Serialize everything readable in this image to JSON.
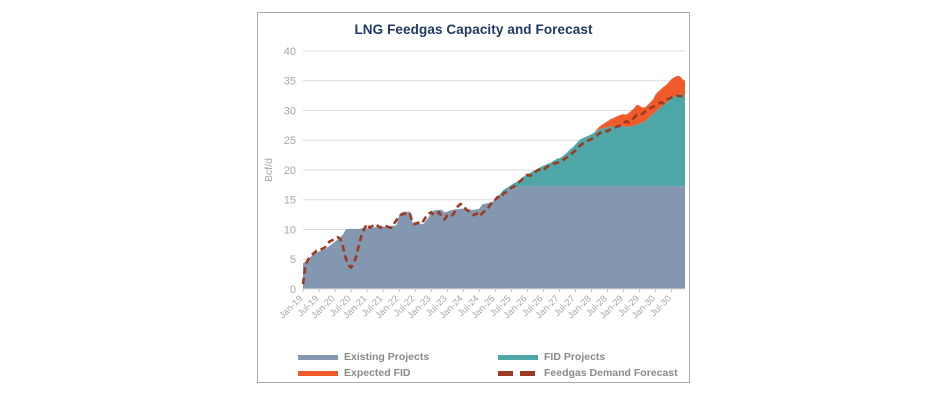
{
  "card": {
    "border_color": "#a9a9a9",
    "background": "#ffffff"
  },
  "title": {
    "text": "LNG Feedgas Capacity and Forecast",
    "color": "#1f3864"
  },
  "y_axis": {
    "label": "Bcf/d",
    "ticks": [
      0,
      5,
      10,
      15,
      20,
      25,
      30,
      35,
      40
    ],
    "min": 0,
    "max": 40,
    "text_color": "#a6a6a6",
    "gridline_color": "#dcdcdc"
  },
  "x_axis": {
    "tick_labels": [
      "Jan-19",
      "Jul-19",
      "Jan-20",
      "Jul-20",
      "Jan-21",
      "Jul-21",
      "Jan-22",
      "Jul-22",
      "Jan-23",
      "Jul-23",
      "Jan-24",
      "Jul-24",
      "Jan-25",
      "Jul-25",
      "Jan-26",
      "Jul-26",
      "Jan-27",
      "Jul-27",
      "Jan-28",
      "Jul-28",
      "Jan-29",
      "Jul-29",
      "Jan-30",
      "Jul-30"
    ],
    "text_color": "#a6a6a6",
    "tick_color": "#bfbfbf"
  },
  "legend": {
    "text_color": "#8a8a8a",
    "items": [
      {
        "label": "Existing Projects",
        "color": "#8497b0",
        "style": "solid"
      },
      {
        "label": "FID Projects",
        "color": "#4ea7a6",
        "style": "solid"
      },
      {
        "label": "Expected FID",
        "color": "#f15b2b",
        "style": "solid"
      },
      {
        "label": "Feedgas Demand Forecast",
        "color": "#9c3a22",
        "style": "dashed"
      }
    ]
  },
  "chart_data": {
    "type": "area",
    "stacked": true,
    "title": "LNG Feedgas Capacity and Forecast",
    "ylabel": "Bcf/d",
    "ylim": [
      0,
      40
    ],
    "grid": true,
    "legend_position": "bottom",
    "frequency": "monthly",
    "x_start": "Jan-19",
    "x_end": "Dec-30",
    "x_tick_labels": [
      "Jan-19",
      "Jul-19",
      "Jan-20",
      "Jul-20",
      "Jan-21",
      "Jul-21",
      "Jan-22",
      "Jul-22",
      "Jan-23",
      "Jul-23",
      "Jan-24",
      "Jul-24",
      "Jan-25",
      "Jul-25",
      "Jan-26",
      "Jul-26",
      "Jan-27",
      "Jul-27",
      "Jan-28",
      "Jul-28",
      "Jan-29",
      "Jul-29",
      "Jan-30",
      "Jul-30"
    ],
    "units": "Bcf/d",
    "series": [
      {
        "name": "Existing Projects",
        "type": "area",
        "color": "#8497b0",
        "values": [
          4.3,
          4.6,
          4.9,
          5.5,
          5.8,
          6.2,
          6.3,
          6.5,
          6.6,
          6.9,
          7.3,
          7.6,
          8.0,
          8.3,
          8.7,
          9.2,
          10.0,
          10.1,
          10.1,
          10.1,
          10.1,
          10.1,
          10.2,
          10.2,
          10.2,
          10.3,
          10.3,
          10.4,
          10.4,
          10.5,
          10.5,
          10.5,
          10.5,
          10.6,
          10.6,
          10.7,
          12.5,
          12.9,
          13.0,
          13.0,
          13.0,
          11.2,
          11.0,
          11.0,
          11.0,
          10.9,
          11.5,
          12.0,
          12.8,
          13.2,
          13.3,
          13.3,
          13.3,
          12.9,
          13.0,
          13.2,
          13.3,
          13.4,
          13.4,
          13.5,
          13.5,
          13.5,
          13.4,
          13.3,
          13.3,
          13.4,
          13.5,
          14.2,
          14.3,
          14.4,
          14.5,
          14.7,
          15.0,
          15.4,
          15.8,
          16.2,
          16.5,
          16.7,
          16.9,
          17.0,
          17.1,
          17.2,
          17.3,
          17.3,
          17.3,
          17.3,
          17.3,
          17.3,
          17.3,
          17.3,
          17.3,
          17.3,
          17.3,
          17.3,
          17.3,
          17.3,
          17.3,
          17.3,
          17.3,
          17.3,
          17.3,
          17.3,
          17.3,
          17.3,
          17.3,
          17.3,
          17.3,
          17.3,
          17.3,
          17.3,
          17.3,
          17.3,
          17.3,
          17.3,
          17.3,
          17.3,
          17.3,
          17.3,
          17.3,
          17.3,
          17.3,
          17.3,
          17.3,
          17.3,
          17.3,
          17.3,
          17.3,
          17.3,
          17.3,
          17.3,
          17.3,
          17.3,
          17.3,
          17.3,
          17.3,
          17.3,
          17.3,
          17.3,
          17.3,
          17.3,
          17.3,
          17.3,
          17.3,
          17.3
        ]
      },
      {
        "name": "FID Projects",
        "type": "area",
        "color": "#4ea7a6",
        "values": [
          0,
          0,
          0,
          0,
          0,
          0,
          0,
          0,
          0,
          0,
          0,
          0,
          0,
          0,
          0,
          0,
          0,
          0,
          0,
          0,
          0,
          0,
          0,
          0,
          0,
          0,
          0,
          0,
          0,
          0,
          0,
          0,
          0,
          0,
          0,
          0,
          0,
          0,
          0,
          0,
          0,
          0,
          0,
          0,
          0,
          0,
          0,
          0,
          0,
          0,
          0,
          0,
          0,
          0,
          0,
          0,
          0,
          0,
          0,
          0,
          0,
          0,
          0,
          0,
          0,
          0,
          0,
          0,
          0,
          0,
          0,
          0,
          0.2,
          0.2,
          0.3,
          0.4,
          0.4,
          0.5,
          0.6,
          0.8,
          0.9,
          1.1,
          1.4,
          1.7,
          2.0,
          2.2,
          2.5,
          2.7,
          2.9,
          3.2,
          3.4,
          3.6,
          3.8,
          4.0,
          4.3,
          4.6,
          4.7,
          4.9,
          5.3,
          5.7,
          6.2,
          6.5,
          7.0,
          7.5,
          7.9,
          8.1,
          8.3,
          8.5,
          8.7,
          9.0,
          9.3,
          9.5,
          9.7,
          9.8,
          9.9,
          10.0,
          10.1,
          10.1,
          10.2,
          10.2,
          10.1,
          9.9,
          10.0,
          10.1,
          10.2,
          10.3,
          10.5,
          10.7,
          10.9,
          11.3,
          11.7,
          12.1,
          12.5,
          12.9,
          13.3,
          13.7,
          14.0,
          14.4,
          14.7,
          15.1,
          15.4,
          15.5,
          15.3,
          15.2
        ]
      },
      {
        "name": "Expected FID",
        "type": "area",
        "color": "#f15b2b",
        "values": [
          0,
          0,
          0,
          0,
          0,
          0,
          0,
          0,
          0,
          0,
          0,
          0,
          0,
          0,
          0,
          0,
          0,
          0,
          0,
          0,
          0,
          0,
          0,
          0,
          0,
          0,
          0,
          0,
          0,
          0,
          0,
          0,
          0,
          0,
          0,
          0,
          0,
          0,
          0,
          0,
          0,
          0,
          0,
          0,
          0,
          0,
          0,
          0,
          0,
          0,
          0,
          0,
          0,
          0,
          0,
          0,
          0,
          0,
          0,
          0,
          0,
          0,
          0,
          0,
          0,
          0,
          0,
          0,
          0,
          0,
          0,
          0,
          0,
          0,
          0,
          0,
          0,
          0,
          0,
          0,
          0,
          0,
          0,
          0,
          0,
          0,
          0,
          0,
          0,
          0,
          0,
          0,
          0,
          0,
          0,
          0,
          0,
          0,
          0,
          0,
          0,
          0,
          0,
          0,
          0,
          0,
          0,
          0,
          0,
          0,
          0.2,
          0.5,
          0.6,
          0.8,
          1.0,
          1.2,
          1.3,
          1.5,
          1.6,
          1.8,
          2.0,
          2.1,
          2.3,
          2.6,
          2.9,
          3.4,
          3.0,
          2.5,
          2.3,
          2.3,
          2.4,
          2.4,
          2.9,
          3.0,
          3.0,
          3.0,
          3.0,
          3.1,
          3.3,
          3.2,
          3.1,
          3.0,
          2.7,
          2.5
        ]
      },
      {
        "name": "Feedgas Demand Forecast",
        "type": "line",
        "style": "dashed",
        "color": "#9c3a22",
        "values": [
          0.8,
          4.2,
          5.0,
          5.6,
          6.0,
          6.4,
          6.4,
          6.7,
          6.9,
          7.4,
          8.0,
          8.2,
          8.5,
          8.7,
          8.4,
          7.0,
          5.2,
          4.0,
          3.6,
          4.3,
          5.6,
          7.6,
          9.2,
          10.2,
          10.9,
          10.3,
          10.6,
          10.9,
          10.6,
          10.3,
          10.6,
          10.6,
          10.4,
          10.3,
          10.9,
          11.6,
          12.2,
          12.5,
          12.7,
          12.4,
          12.6,
          11.2,
          10.9,
          11.1,
          11.6,
          11.4,
          12.1,
          12.6,
          12.9,
          12.4,
          12.6,
          12.9,
          12.1,
          11.7,
          12.4,
          12.6,
          12.4,
          13.1,
          13.9,
          14.3,
          14.0,
          13.4,
          13.1,
          12.7,
          12.4,
          12.7,
          12.2,
          12.7,
          13.1,
          13.4,
          14.1,
          14.7,
          15.0,
          15.5,
          15.3,
          16.0,
          16.3,
          16.6,
          17.0,
          17.2,
          17.6,
          18.0,
          18.4,
          18.8,
          19.2,
          19.0,
          19.4,
          19.7,
          20.0,
          20.2,
          20.0,
          20.4,
          20.7,
          20.9,
          21.1,
          21.2,
          21.3,
          21.5,
          21.9,
          22.2,
          22.5,
          22.9,
          23.3,
          23.8,
          24.2,
          24.5,
          24.8,
          25.0,
          25.2,
          25.5,
          25.8,
          26.2,
          26.4,
          26.6,
          26.5,
          26.8,
          27.0,
          27.2,
          27.4,
          27.5,
          27.8,
          28.2,
          28.0,
          28.4,
          28.8,
          29.3,
          29.5,
          29.4,
          29.8,
          30.1,
          30.4,
          30.6,
          30.8,
          31.1,
          31.4,
          31.2,
          31.8,
          32.0,
          32.2,
          32.4,
          32.5,
          32.4,
          32.4,
          32.4
        ]
      }
    ]
  }
}
